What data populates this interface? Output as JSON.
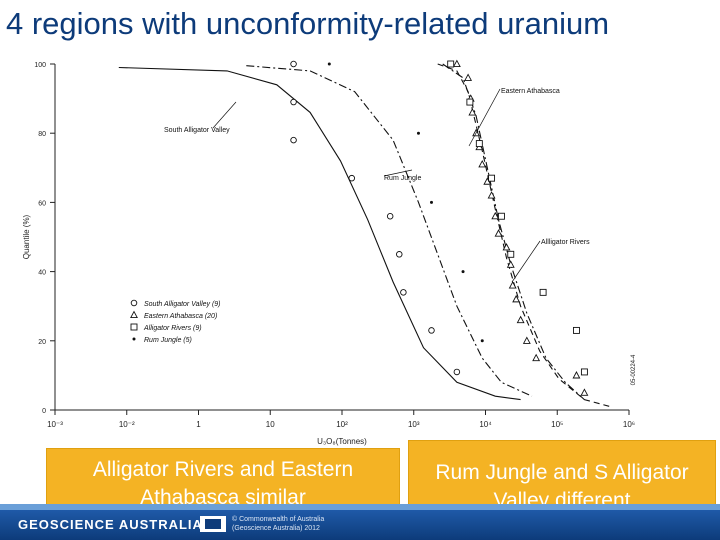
{
  "slide": {
    "title": "4 regions with unconformity-related uranium",
    "callout_left": "Alligator Rivers and Eastern Athabasca similar",
    "callout_right": "Rum Jungle and S Alligator Valley different",
    "footer_brand": "GEOSCIENCE AUSTRALIA",
    "footer_copy_1": "© Commonwealth of Australia",
    "footer_copy_2": "(Geoscience Australia) 2012"
  },
  "chart_data": {
    "type": "scatter",
    "xscale": "log",
    "xlabel": "U₃O₈(Tonnes)",
    "ylabel": "Quantile (%)",
    "xlim": [
      0.001,
      1000000
    ],
    "ylim": [
      0,
      100
    ],
    "x_ticks": [
      "10⁻³",
      "10⁻²",
      "1",
      "10",
      "10²",
      "10³",
      "10⁴",
      "10⁵",
      "10⁶"
    ],
    "y_ticks": [
      "0",
      "20",
      "40",
      "60",
      "80",
      "100"
    ],
    "figure_code": "05-00224-4",
    "legend_position": "lower-left",
    "series": [
      {
        "name": "South Alligator Valley (9)",
        "marker": "circle",
        "points": [
          [
            5.5,
            100
          ],
          [
            5.5,
            89
          ],
          [
            5.5,
            78
          ],
          [
            45,
            67
          ],
          [
            180,
            56
          ],
          [
            250,
            45
          ],
          [
            290,
            34
          ],
          [
            800,
            23
          ],
          [
            2000,
            11
          ]
        ]
      },
      {
        "name": "Eastern Athabasca (20)",
        "marker": "triangle",
        "points": [
          [
            2000,
            100
          ],
          [
            3000,
            96
          ],
          [
            3300,
            90
          ],
          [
            3500,
            86
          ],
          [
            4000,
            80
          ],
          [
            4500,
            76
          ],
          [
            5000,
            71
          ],
          [
            6000,
            66
          ],
          [
            7000,
            62
          ],
          [
            8000,
            56
          ],
          [
            9000,
            51
          ],
          [
            12000,
            47
          ],
          [
            14000,
            42
          ],
          [
            15000,
            36
          ],
          [
            17000,
            32
          ],
          [
            20000,
            26
          ],
          [
            25000,
            20
          ],
          [
            35000,
            15
          ],
          [
            150000,
            10
          ],
          [
            200000,
            5
          ]
        ]
      },
      {
        "name": "Alligator Rivers (9)",
        "marker": "square",
        "points": [
          [
            1600,
            100
          ],
          [
            3200,
            89
          ],
          [
            4500,
            77
          ],
          [
            7000,
            67
          ],
          [
            10000,
            56
          ],
          [
            14000,
            45
          ],
          [
            45000,
            34
          ],
          [
            150000,
            23
          ],
          [
            200000,
            11
          ]
        ]
      },
      {
        "name": "Rum Jungle (5)",
        "marker": "dot",
        "points": [
          [
            20,
            100
          ],
          [
            500,
            80
          ],
          [
            800,
            60
          ],
          [
            2500,
            40
          ],
          [
            5000,
            20
          ]
        ]
      }
    ],
    "curves": [
      {
        "name": "South Alligator Valley",
        "style": "solid",
        "points": [
          [
            0.01,
            99
          ],
          [
            0.5,
            98
          ],
          [
            3,
            94
          ],
          [
            10,
            86
          ],
          [
            30,
            72
          ],
          [
            80,
            55
          ],
          [
            200,
            37
          ],
          [
            600,
            18
          ],
          [
            2000,
            8
          ],
          [
            8000,
            4
          ],
          [
            20000,
            3
          ]
        ]
      },
      {
        "name": "Rum Jungle",
        "style": "dashdot",
        "points": [
          [
            1,
            99.5
          ],
          [
            10,
            98
          ],
          [
            50,
            92
          ],
          [
            200,
            78
          ],
          [
            500,
            60
          ],
          [
            1000,
            45
          ],
          [
            2000,
            30
          ],
          [
            5000,
            15
          ],
          [
            10000,
            8
          ],
          [
            30000,
            4
          ]
        ]
      },
      {
        "name": "Eastern Athabasca",
        "style": "dashed",
        "points": [
          [
            1000,
            100
          ],
          [
            2000,
            98
          ],
          [
            3000,
            92
          ],
          [
            5000,
            75
          ],
          [
            8000,
            58
          ],
          [
            12000,
            44
          ],
          [
            20000,
            30
          ],
          [
            40000,
            17
          ],
          [
            80000,
            9
          ],
          [
            200000,
            3
          ],
          [
            500000,
            1
          ]
        ]
      },
      {
        "name": "Alligator Rivers",
        "style": "dashdot",
        "points": [
          [
            1200,
            100
          ],
          [
            2500,
            96
          ],
          [
            4000,
            85
          ],
          [
            6000,
            70
          ],
          [
            9000,
            55
          ],
          [
            14000,
            42
          ],
          [
            25000,
            28
          ],
          [
            50000,
            15
          ],
          [
            100000,
            8
          ],
          [
            200000,
            3
          ]
        ]
      }
    ],
    "annotations": [
      {
        "text": "South Alligator Valley"
      },
      {
        "text": "Rum Jungle"
      },
      {
        "text": "Eastern Athabasca"
      },
      {
        "text": "Allligator Rivers"
      }
    ],
    "colors": {
      "axis": "#222222",
      "marks": "#111111"
    }
  }
}
